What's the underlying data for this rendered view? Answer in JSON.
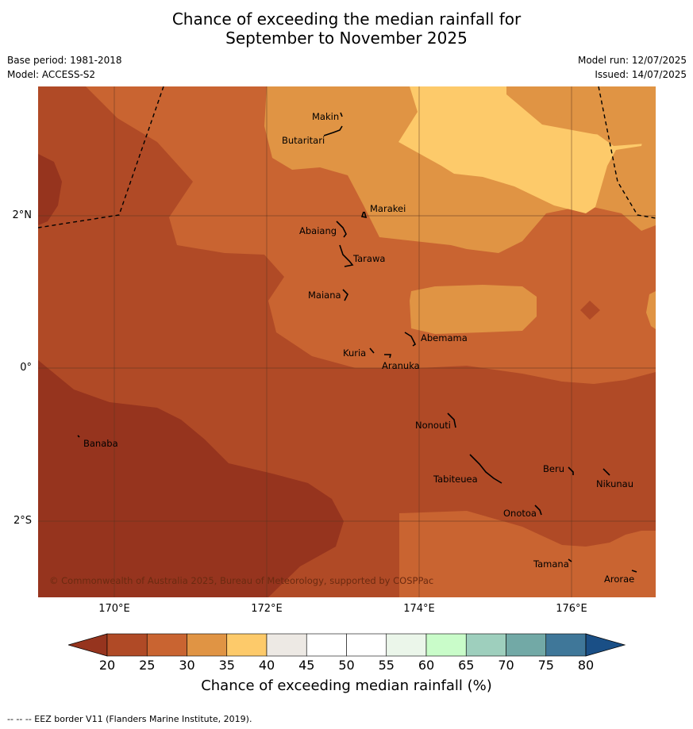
{
  "title_line1": "Chance of exceeding the median rainfall for",
  "title_line2": "September to November 2025",
  "meta": {
    "base_period": "Base period: 1981-2018",
    "model": "Model: ACCESS-S2",
    "model_run": "Model run: 12/07/2025",
    "issued": "Issued: 14/07/2025"
  },
  "map": {
    "lat_ticks": [
      "2°N",
      "0°",
      "2°S"
    ],
    "lon_ticks": [
      "170°E",
      "172°E",
      "174°E",
      "176°E"
    ],
    "copyright": "© Commonwealth of Australia 2025, Bureau of Meteorology, supported by COSPPac",
    "islands": [
      "Makin",
      "Butaritari",
      "Marakei",
      "Abaiang",
      "Tarawa",
      "Maiana",
      "Abemama",
      "Kuria",
      "Aranuka",
      "Nonouti",
      "Banaba",
      "Beru",
      "Nikunau",
      "Tabiteuea",
      "Onotoa",
      "Tamana",
      "Arorae"
    ],
    "colors": {
      "under_20": "#96341e",
      "20_25": "#b04a26",
      "25_30": "#c96431",
      "30_35": "#e09444",
      "35_40": "#fdca6a"
    }
  },
  "colorbar": {
    "ticks": [
      "20",
      "25",
      "30",
      "35",
      "40",
      "45",
      "50",
      "55",
      "60",
      "65",
      "70",
      "75",
      "80"
    ],
    "colors": [
      "#b04a26",
      "#c96431",
      "#e09444",
      "#fdca6a",
      "#ede9e4",
      "#ffffff",
      "#ffffff",
      "#ebf6ea",
      "#c9fcc9",
      "#9ecfbd",
      "#72a9a6",
      "#3f7799"
    ],
    "under_color": "#96341e",
    "over_color": "#1a4f86",
    "label": "Chance of exceeding median rainfall (%)"
  },
  "footer": "--  --  -- EEZ border V11 (Flanders Marine Institute, 2019)."
}
